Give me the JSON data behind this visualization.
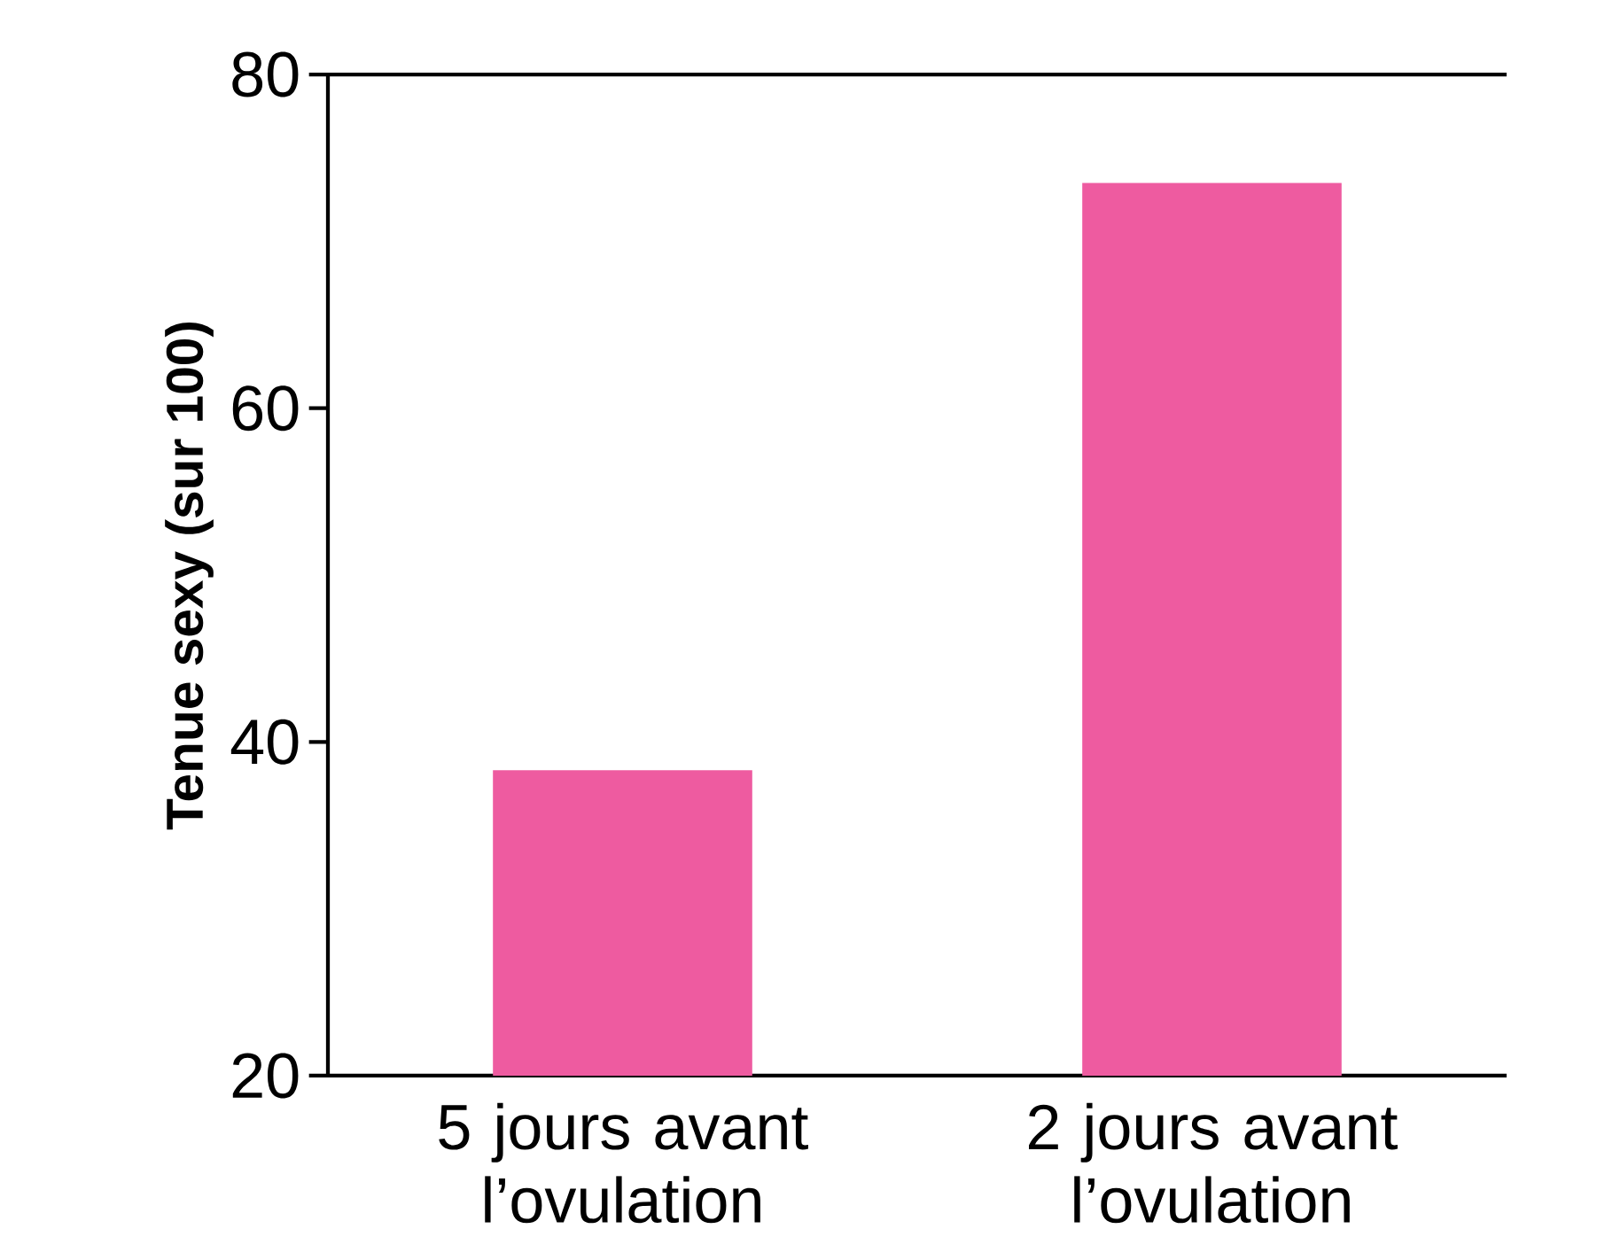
{
  "chart_data": {
    "type": "bar",
    "ylabel": "Tenue sexy (sur 100)",
    "categories": [
      "5 jours avant l’ovulation",
      "2 jours avant l’ovulation"
    ],
    "values": [
      38.3,
      73.5
    ],
    "color": "#ee5ba0",
    "ylim": [
      20,
      80
    ],
    "yticks": [
      20,
      40,
      60,
      80
    ],
    "grid": false
  }
}
